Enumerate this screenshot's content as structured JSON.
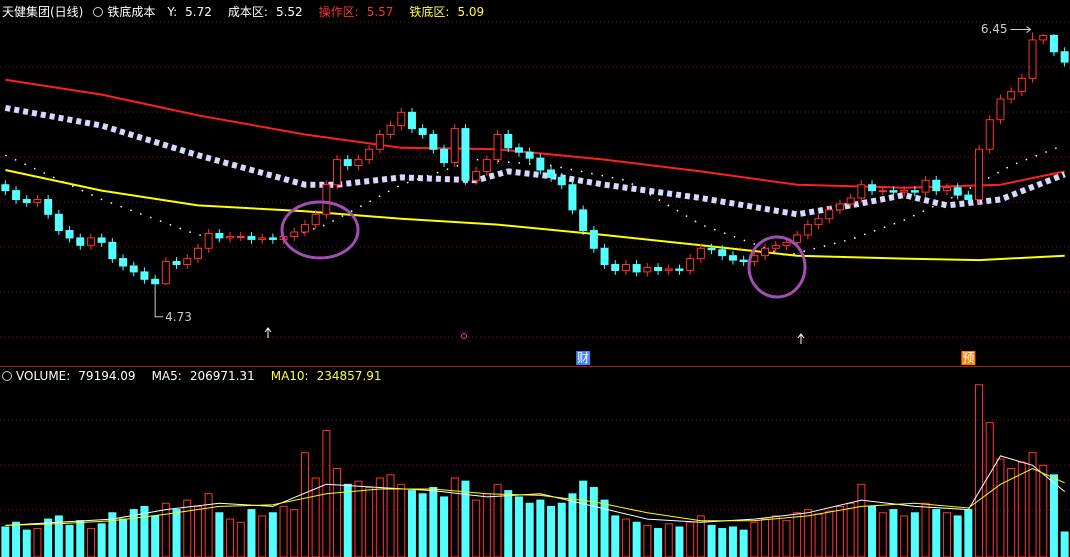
{
  "chart_data": [
    {
      "type": "candlestick",
      "title": "天健集团(日线)",
      "subtitle": "铁底成本",
      "readouts": [
        {
          "label": "Y:",
          "value": 5.72,
          "color": "#ffffff"
        },
        {
          "label": "成本区:",
          "value": 5.52,
          "color": "#ffffff"
        },
        {
          "label": "操作区:",
          "value": 5.57,
          "color": "#ff3030"
        },
        {
          "label": "铁底区:",
          "value": 5.09,
          "color": "#ffff40"
        }
      ],
      "annotations": [
        {
          "text": "财",
          "at": 54,
          "color": "#4080ff"
        },
        {
          "text": "预",
          "at": 90,
          "color": "#ff8000"
        }
      ],
      "xlim": [
        -0.5,
        99.5
      ],
      "ylim": [
        4.2,
        6.65
      ],
      "up_color": "#ff3232",
      "down_color": "#54ffff",
      "candles": [
        [
          5.42,
          5.45,
          5.35,
          5.38
        ],
        [
          5.38,
          5.41,
          5.29,
          5.32
        ],
        [
          5.32,
          5.35,
          5.27,
          5.3
        ],
        [
          5.3,
          5.35,
          5.27,
          5.32
        ],
        [
          5.32,
          5.35,
          5.19,
          5.22
        ],
        [
          5.22,
          5.25,
          5.08,
          5.11
        ],
        [
          5.11,
          5.14,
          5.03,
          5.06
        ],
        [
          5.06,
          5.09,
          4.98,
          5.01
        ],
        [
          5.01,
          5.09,
          4.98,
          5.06
        ],
        [
          5.06,
          5.09,
          5.0,
          5.03
        ],
        [
          5.03,
          5.06,
          4.89,
          4.92
        ],
        [
          4.92,
          4.95,
          4.84,
          4.87
        ],
        [
          4.87,
          4.9,
          4.8,
          4.83
        ],
        [
          4.83,
          4.86,
          4.75,
          4.78
        ],
        [
          4.78,
          4.81,
          4.73,
          4.75
        ],
        [
          4.75,
          4.93,
          4.74,
          4.9
        ],
        [
          4.9,
          4.93,
          4.85,
          4.88
        ],
        [
          4.88,
          4.95,
          4.85,
          4.92
        ],
        [
          4.92,
          5.02,
          4.89,
          4.99
        ],
        [
          4.99,
          5.12,
          4.96,
          5.09
        ],
        [
          5.09,
          5.12,
          5.03,
          5.06
        ],
        [
          5.06,
          5.1,
          5.03,
          5.07
        ],
        [
          5.07,
          5.1,
          5.04,
          5.07
        ],
        [
          5.07,
          5.1,
          5.02,
          5.05
        ],
        [
          5.05,
          5.09,
          5.02,
          5.06
        ],
        [
          5.06,
          5.09,
          5.02,
          5.05
        ],
        [
          5.05,
          5.1,
          5.02,
          5.07
        ],
        [
          5.07,
          5.13,
          5.04,
          5.1
        ],
        [
          5.1,
          5.18,
          5.07,
          5.15
        ],
        [
          5.15,
          5.25,
          5.12,
          5.22
        ],
        [
          5.22,
          5.45,
          5.19,
          5.42
        ],
        [
          5.42,
          5.62,
          5.39,
          5.59
        ],
        [
          5.59,
          5.62,
          5.52,
          5.55
        ],
        [
          5.55,
          5.62,
          5.52,
          5.59
        ],
        [
          5.59,
          5.69,
          5.56,
          5.66
        ],
        [
          5.66,
          5.79,
          5.63,
          5.76
        ],
        [
          5.76,
          5.85,
          5.73,
          5.82
        ],
        [
          5.82,
          5.94,
          5.79,
          5.91
        ],
        [
          5.91,
          5.94,
          5.77,
          5.8
        ],
        [
          5.8,
          5.83,
          5.73,
          5.76
        ],
        [
          5.76,
          5.79,
          5.63,
          5.66
        ],
        [
          5.66,
          5.69,
          5.54,
          5.57
        ],
        [
          5.57,
          5.83,
          5.54,
          5.8
        ],
        [
          5.8,
          5.83,
          5.42,
          5.45
        ],
        [
          5.45,
          5.54,
          5.42,
          5.51
        ],
        [
          5.51,
          5.62,
          5.48,
          5.59
        ],
        [
          5.59,
          5.79,
          5.56,
          5.76
        ],
        [
          5.76,
          5.79,
          5.64,
          5.67
        ],
        [
          5.67,
          5.7,
          5.61,
          5.64
        ],
        [
          5.64,
          5.67,
          5.57,
          5.6
        ],
        [
          5.6,
          5.63,
          5.49,
          5.52
        ],
        [
          5.52,
          5.55,
          5.44,
          5.47
        ],
        [
          5.47,
          5.5,
          5.39,
          5.42
        ],
        [
          5.42,
          5.45,
          5.22,
          5.25
        ],
        [
          5.25,
          5.28,
          5.08,
          5.11
        ],
        [
          5.11,
          5.14,
          4.96,
          4.99
        ],
        [
          4.99,
          5.02,
          4.85,
          4.88
        ],
        [
          4.88,
          4.91,
          4.81,
          4.84
        ],
        [
          4.84,
          4.91,
          4.81,
          4.88
        ],
        [
          4.88,
          4.91,
          4.8,
          4.83
        ],
        [
          4.83,
          4.89,
          4.8,
          4.86
        ],
        [
          4.86,
          4.89,
          4.81,
          4.84
        ],
        [
          4.84,
          4.88,
          4.81,
          4.85
        ],
        [
          4.85,
          4.88,
          4.81,
          4.84
        ],
        [
          4.84,
          4.95,
          4.81,
          4.92
        ],
        [
          4.92,
          5.02,
          4.89,
          4.99
        ],
        [
          4.99,
          5.02,
          4.95,
          4.98
        ],
        [
          4.98,
          5.01,
          4.91,
          4.94
        ],
        [
          4.94,
          4.97,
          4.88,
          4.91
        ],
        [
          4.91,
          4.94,
          4.87,
          4.9
        ],
        [
          4.9,
          4.97,
          4.87,
          4.94
        ],
        [
          4.94,
          5.02,
          4.91,
          4.99
        ],
        [
          4.99,
          5.04,
          4.96,
          5.01
        ],
        [
          5.01,
          5.06,
          4.98,
          5.03
        ],
        [
          5.03,
          5.11,
          5.0,
          5.08
        ],
        [
          5.08,
          5.18,
          5.05,
          5.15
        ],
        [
          5.15,
          5.22,
          5.12,
          5.19
        ],
        [
          5.19,
          5.28,
          5.16,
          5.25
        ],
        [
          5.25,
          5.32,
          5.22,
          5.29
        ],
        [
          5.29,
          5.36,
          5.26,
          5.33
        ],
        [
          5.33,
          5.45,
          5.3,
          5.42
        ],
        [
          5.42,
          5.45,
          5.35,
          5.38
        ],
        [
          5.38,
          5.41,
          5.35,
          5.38
        ],
        [
          5.38,
          5.41,
          5.34,
          5.37
        ],
        [
          5.37,
          5.41,
          5.34,
          5.38
        ],
        [
          5.38,
          5.41,
          5.34,
          5.37
        ],
        [
          5.37,
          5.48,
          5.34,
          5.45
        ],
        [
          5.45,
          5.48,
          5.35,
          5.38
        ],
        [
          5.38,
          5.43,
          5.35,
          5.4
        ],
        [
          5.4,
          5.43,
          5.32,
          5.35
        ],
        [
          5.35,
          5.38,
          5.29,
          5.32
        ],
        [
          5.32,
          5.69,
          5.29,
          5.66
        ],
        [
          5.66,
          5.89,
          5.63,
          5.86
        ],
        [
          5.86,
          6.03,
          5.83,
          6.0
        ],
        [
          6.0,
          6.08,
          5.97,
          6.05
        ],
        [
          6.05,
          6.17,
          6.02,
          6.14
        ],
        [
          6.14,
          6.45,
          6.11,
          6.4
        ],
        [
          6.4,
          6.44,
          6.37,
          6.43
        ],
        [
          6.43,
          6.44,
          6.29,
          6.32
        ],
        [
          6.32,
          6.35,
          6.22,
          6.25
        ]
      ],
      "low_label_at": 14,
      "high_label_at": 96,
      "lines": [
        {
          "style": "solid",
          "color": "#ff2020",
          "x": [
            0,
            9,
            18,
            28,
            37,
            46,
            56,
            65,
            74,
            84,
            93,
            99
          ],
          "values": [
            6.13,
            6.03,
            5.89,
            5.76,
            5.67,
            5.66,
            5.59,
            5.51,
            5.42,
            5.4,
            5.42,
            5.51
          ]
        },
        {
          "style": "diamond",
          "color": "#d8d8ff",
          "x": [
            0,
            9,
            18,
            28,
            31,
            37,
            44,
            47,
            52,
            56,
            65,
            74,
            79,
            84,
            88,
            93,
            99
          ],
          "values": [
            5.94,
            5.82,
            5.62,
            5.42,
            5.42,
            5.47,
            5.45,
            5.51,
            5.47,
            5.42,
            5.33,
            5.22,
            5.28,
            5.35,
            5.28,
            5.32,
            5.49
          ]
        },
        {
          "style": "dotted",
          "color": "#ffffff",
          "x": [
            0,
            9,
            18,
            26,
            30,
            37,
            44,
            51,
            58,
            65,
            73,
            79,
            84,
            89,
            94,
            99
          ],
          "values": [
            5.62,
            5.32,
            5.08,
            5.05,
            5.15,
            5.42,
            5.59,
            5.55,
            5.45,
            5.15,
            4.94,
            5.05,
            5.18,
            5.35,
            5.55,
            5.69
          ]
        },
        {
          "style": "solid",
          "color": "#ffff00",
          "x": [
            0,
            9,
            18,
            28,
            37,
            46,
            56,
            65,
            74,
            84,
            91,
            99
          ],
          "values": [
            5.52,
            5.38,
            5.28,
            5.24,
            5.19,
            5.15,
            5.08,
            5.01,
            4.94,
            4.92,
            4.91,
            4.94
          ]
        }
      ]
    },
    {
      "type": "bar",
      "readouts": [
        {
          "label": "VOLUME:",
          "color": "#ffffff"
        },
        {
          "label": "MA5:",
          "color": "#ffffff"
        },
        {
          "label": "MA10:",
          "color": "#ffff40"
        }
      ],
      "xlim": [
        -0.5,
        99.5
      ],
      "ylim": [
        0,
        560000
      ],
      "values": [
        95000,
        110000,
        85000,
        90000,
        120000,
        130000,
        100000,
        115000,
        90000,
        105000,
        140000,
        120000,
        150000,
        160000,
        130000,
        170000,
        150000,
        180000,
        160000,
        200000,
        140000,
        120000,
        110000,
        150000,
        130000,
        140000,
        160000,
        150000,
        330000,
        250000,
        400000,
        280000,
        230000,
        240000,
        220000,
        250000,
        260000,
        230000,
        210000,
        200000,
        220000,
        190000,
        250000,
        240000,
        180000,
        200000,
        230000,
        210000,
        190000,
        170000,
        180000,
        160000,
        170000,
        200000,
        240000,
        220000,
        180000,
        130000,
        120000,
        110000,
        100000,
        90000,
        105000,
        95000,
        110000,
        130000,
        100000,
        90000,
        95000,
        85000,
        110000,
        120000,
        130000,
        115000,
        140000,
        150000,
        135000,
        145000,
        160000,
        170000,
        230000,
        160000,
        140000,
        150000,
        130000,
        140000,
        170000,
        150000,
        140000,
        130000,
        150000,
        545000,
        425000,
        310000,
        280000,
        300000,
        330000,
        290000,
        260000,
        79194.09
      ],
      "lines": [
        {
          "name": "MA5",
          "color": "#ffffff",
          "x": [
            0,
            5,
            10,
            15,
            20,
            25,
            30,
            35,
            40,
            45,
            50,
            55,
            60,
            65,
            70,
            75,
            80,
            85,
            90,
            93,
            96,
            99
          ],
          "values": [
            100000,
            110000,
            120000,
            150000,
            170000,
            160000,
            230000,
            220000,
            210000,
            190000,
            200000,
            160000,
            120000,
            110000,
            120000,
            140000,
            180000,
            160000,
            150000,
            320000,
            290000,
            206971.31
          ]
        },
        {
          "name": "MA10",
          "color": "#ffff00",
          "x": [
            0,
            5,
            10,
            15,
            20,
            25,
            30,
            35,
            40,
            45,
            50,
            55,
            60,
            65,
            70,
            75,
            80,
            85,
            90,
            93,
            96,
            99
          ],
          "values": [
            100000,
            105000,
            115000,
            135000,
            160000,
            165000,
            200000,
            215000,
            215000,
            200000,
            195000,
            175000,
            140000,
            115000,
            115000,
            130000,
            160000,
            170000,
            155000,
            230000,
            280000,
            234857.91
          ]
        }
      ]
    }
  ]
}
